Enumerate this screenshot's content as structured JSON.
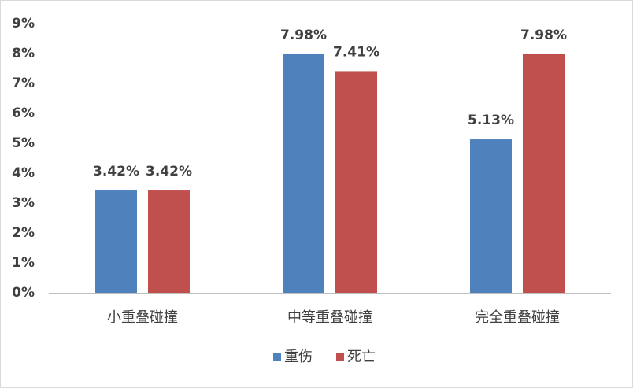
{
  "chart_data": {
    "type": "bar",
    "categories": [
      "小重叠碰撞",
      "中等重叠碰撞",
      "完全重叠碰撞"
    ],
    "series": [
      {
        "name": "重伤",
        "color": "#4f81bd",
        "values": [
          3.42,
          7.98,
          5.13
        ],
        "value_labels": [
          "3.42%",
          "7.98%",
          "5.13%"
        ]
      },
      {
        "name": "死亡",
        "color": "#c0504d",
        "values": [
          3.42,
          7.41,
          7.98
        ],
        "value_labels": [
          "3.42%",
          "7.41%",
          "7.98%"
        ]
      }
    ],
    "ylim": [
      0,
      9
    ],
    "yticks": [
      {
        "value": 0,
        "label": "0%"
      },
      {
        "value": 1,
        "label": "1%"
      },
      {
        "value": 2,
        "label": "2%"
      },
      {
        "value": 3,
        "label": "3%"
      },
      {
        "value": 4,
        "label": "4%"
      },
      {
        "value": 5,
        "label": "5%"
      },
      {
        "value": 6,
        "label": "6%"
      },
      {
        "value": 7,
        "label": "7%"
      },
      {
        "value": 8,
        "label": "8%"
      },
      {
        "value": 9,
        "label": "9%"
      }
    ],
    "grid": false,
    "legend": "bottom"
  }
}
